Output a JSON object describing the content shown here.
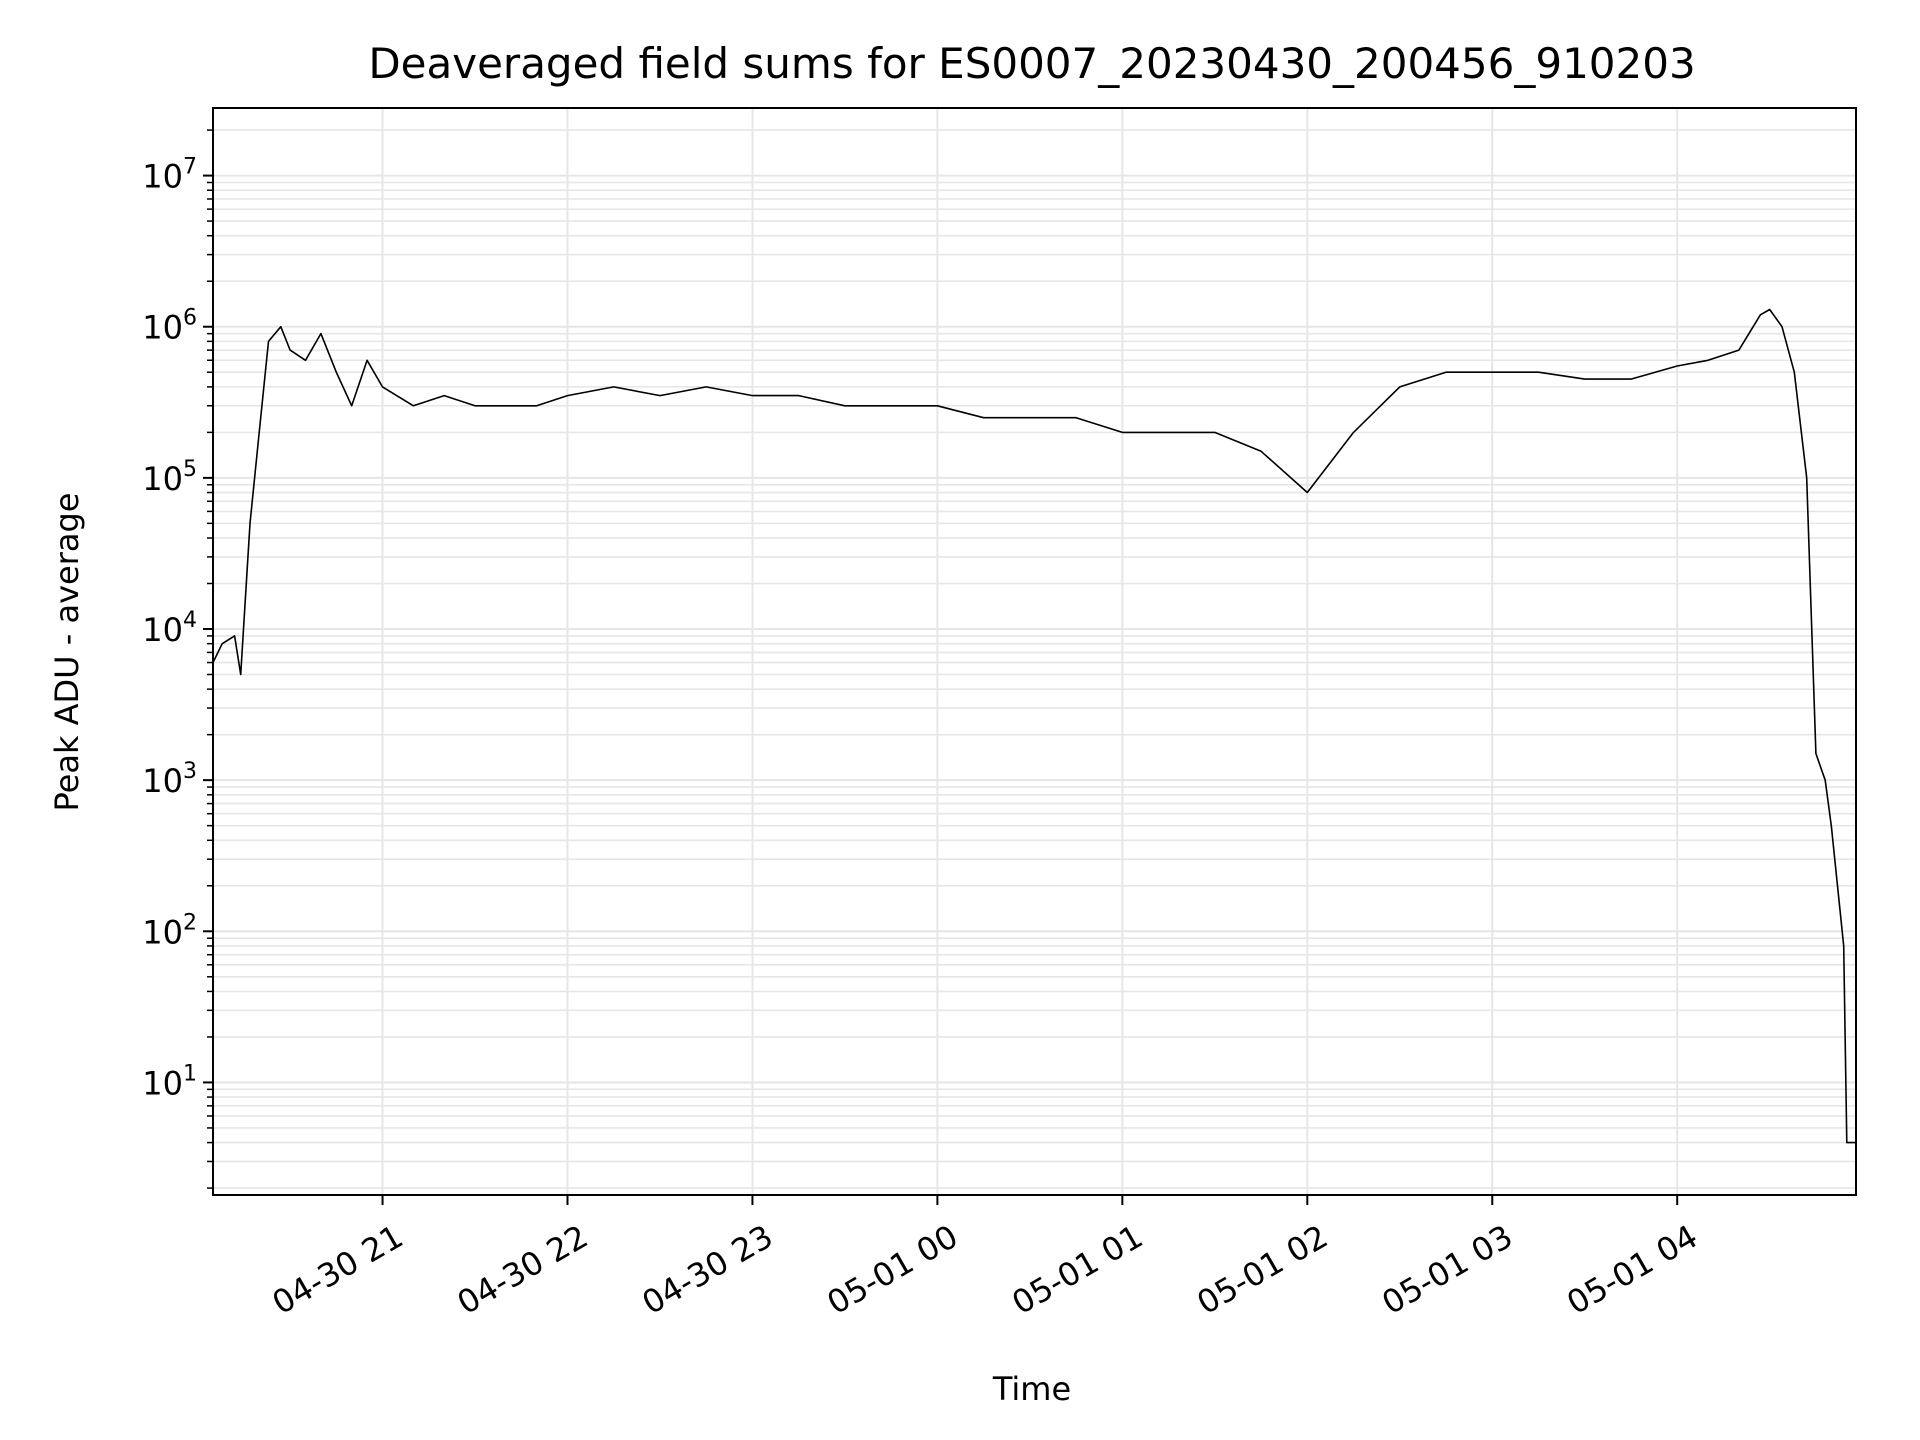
{
  "chart_data": {
    "type": "line",
    "title": "Deaveraged field sums for ES0007_20230430_200456_910203",
    "xlabel": "Time",
    "ylabel": "Peak ADU - average",
    "yscale": "log",
    "grid": true,
    "legend": "none",
    "colors": {
      "line": "#000000",
      "grid": "#e6e6e6",
      "axis": "#000000"
    },
    "x_ticks": [
      {
        "value": "2023-04-30 21:00",
        "label": "04-30 21"
      },
      {
        "value": "2023-04-30 22:00",
        "label": "04-30 22"
      },
      {
        "value": "2023-04-30 23:00",
        "label": "04-30 23"
      },
      {
        "value": "2023-05-01 00:00",
        "label": "05-01 00"
      },
      {
        "value": "2023-05-01 01:00",
        "label": "05-01 01"
      },
      {
        "value": "2023-05-01 02:00",
        "label": "05-01 02"
      },
      {
        "value": "2023-05-01 03:00",
        "label": "05-01 03"
      },
      {
        "value": "2023-05-01 04:00",
        "label": "05-01 04"
      }
    ],
    "xlim": [
      "2023-04-30 20:05",
      "2023-05-01 04:58"
    ],
    "y_ticks": [
      {
        "value": 10,
        "base": "10",
        "exp": "1"
      },
      {
        "value": 100,
        "base": "10",
        "exp": "2"
      },
      {
        "value": 1000,
        "base": "10",
        "exp": "3"
      },
      {
        "value": 10000,
        "base": "10",
        "exp": "4"
      },
      {
        "value": 100000,
        "base": "10",
        "exp": "5"
      },
      {
        "value": 1000000,
        "base": "10",
        "exp": "6"
      },
      {
        "value": 10000000,
        "base": "10",
        "exp": "7"
      }
    ],
    "ylim": [
      1.8,
      28000000
    ],
    "series": [
      {
        "x": [
          "2023-04-30 20:05",
          "2023-04-30 20:08",
          "2023-04-30 20:12",
          "2023-04-30 20:14",
          "2023-04-30 20:17",
          "2023-04-30 20:20",
          "2023-04-30 20:23",
          "2023-04-30 20:27",
          "2023-04-30 20:30",
          "2023-04-30 20:35",
          "2023-04-30 20:40",
          "2023-04-30 20:45",
          "2023-04-30 20:50",
          "2023-04-30 20:55",
          "2023-04-30 21:00",
          "2023-04-30 21:10",
          "2023-04-30 21:20",
          "2023-04-30 21:30",
          "2023-04-30 21:40",
          "2023-04-30 21:50",
          "2023-04-30 22:00",
          "2023-04-30 22:15",
          "2023-04-30 22:30",
          "2023-04-30 22:45",
          "2023-04-30 23:00",
          "2023-04-30 23:15",
          "2023-04-30 23:30",
          "2023-04-30 23:45",
          "2023-05-01 00:00",
          "2023-05-01 00:15",
          "2023-05-01 00:30",
          "2023-05-01 00:45",
          "2023-05-01 01:00",
          "2023-05-01 01:15",
          "2023-05-01 01:30",
          "2023-05-01 01:45",
          "2023-05-01 02:00",
          "2023-05-01 02:15",
          "2023-05-01 02:30",
          "2023-05-01 02:45",
          "2023-05-01 03:00",
          "2023-05-01 03:15",
          "2023-05-01 03:30",
          "2023-05-01 03:45",
          "2023-05-01 04:00",
          "2023-05-01 04:10",
          "2023-05-01 04:20",
          "2023-05-01 04:27",
          "2023-05-01 04:30",
          "2023-05-01 04:34",
          "2023-05-01 04:38",
          "2023-05-01 04:42",
          "2023-05-01 04:45",
          "2023-05-01 04:48",
          "2023-05-01 04:50",
          "2023-05-01 04:52",
          "2023-05-01 04:54",
          "2023-05-01 04:55",
          "2023-05-01 04:58"
        ],
        "y": [
          6000,
          8000,
          9000,
          5000,
          50000,
          200000,
          800000,
          1000000,
          700000,
          600000,
          900000,
          500000,
          300000,
          600000,
          400000,
          300000,
          350000,
          300000,
          300000,
          300000,
          350000,
          400000,
          350000,
          400000,
          350000,
          350000,
          300000,
          300000,
          300000,
          250000,
          250000,
          250000,
          200000,
          200000,
          200000,
          150000,
          80000,
          200000,
          400000,
          500000,
          500000,
          500000,
          450000,
          450000,
          550000,
          600000,
          700000,
          1200000,
          1300000,
          1000000,
          500000,
          100000,
          1500,
          1000,
          500,
          200,
          80,
          4,
          4
        ]
      }
    ]
  }
}
